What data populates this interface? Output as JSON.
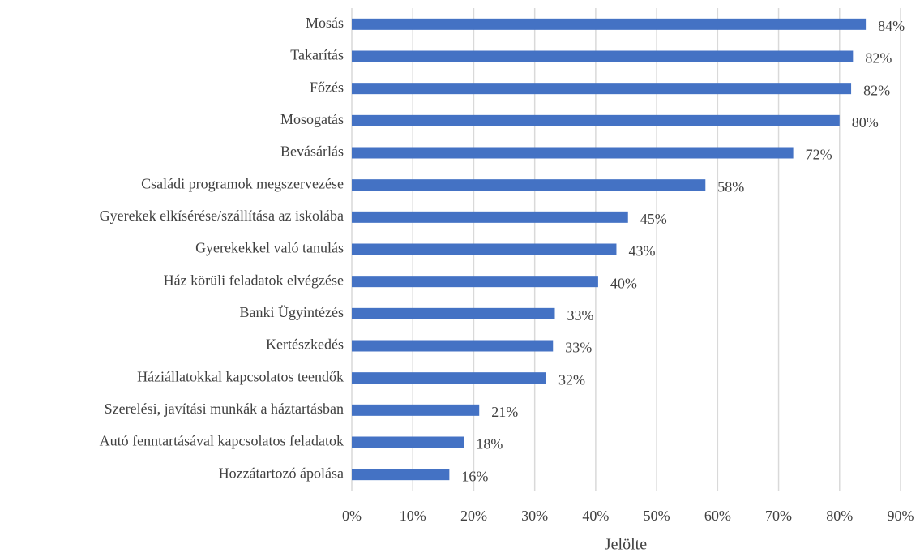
{
  "chart_data": {
    "type": "bar",
    "orientation": "horizontal",
    "categories": [
      "Mosás",
      "Takarítás",
      "Főzés",
      "Mosogatás",
      "Bevásárlás",
      "Családi programok megszervezése",
      "Gyerekek elkísérése/szállítása az iskolába",
      "Gyerekekkel való tanulás",
      "Ház körüli feladatok elvégzése",
      "Banki Ügyintézés",
      "Kertészkedés",
      "Háziállatokkal kapcsolatos teendők",
      "Szerelési, javítási munkák a háztartásban",
      "Autó fenntartásával kapcsolatos feladatok",
      "Hozzátartozó ápolása"
    ],
    "values": [
      84.3,
      82.2,
      81.9,
      80,
      72.4,
      58,
      45.3,
      43.4,
      40.4,
      33.3,
      33,
      31.9,
      20.9,
      18.4,
      16
    ],
    "value_labels": [
      "84%",
      "82%",
      "82%",
      "80%",
      "72%",
      "58%",
      "45%",
      "43%",
      "40%",
      "33%",
      "33%",
      "32%",
      "21%",
      "18%",
      "16%"
    ],
    "color": "#4472c4",
    "xlabel": "Jelölte",
    "xlim": [
      0,
      90
    ],
    "xticks": [
      {
        "value": 0,
        "label": "0%"
      },
      {
        "value": 10,
        "label": "10%"
      },
      {
        "value": 20,
        "label": "20%"
      },
      {
        "value": 30,
        "label": "30%"
      },
      {
        "value": 40,
        "label": "40%"
      },
      {
        "value": 50,
        "label": "50%"
      },
      {
        "value": 60,
        "label": "60%"
      },
      {
        "value": 70,
        "label": "70%"
      },
      {
        "value": 80,
        "label": "80%"
      },
      {
        "value": 90,
        "label": "90%"
      }
    ],
    "grid": true
  }
}
